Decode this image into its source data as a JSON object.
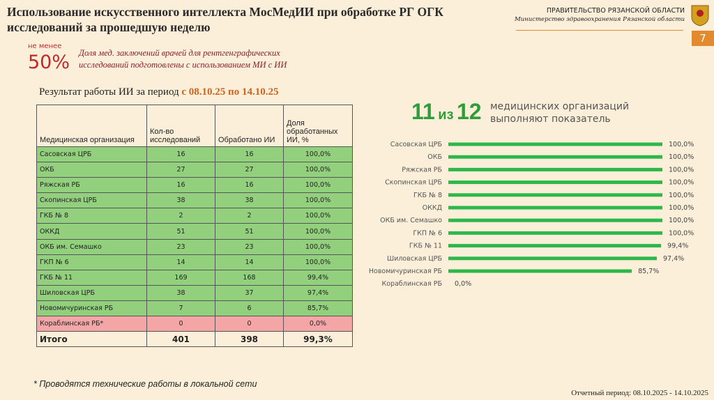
{
  "header": {
    "title": "Использование искусственного интеллекта МосМедИИ при обработке РГ ОГК исследований за прошедшую неделю",
    "org": "ПРАВИТЕЛЬСТВО РЯЗАНСКОЙ ОБЛАСТИ",
    "ministry": "Министерство здравоохранения Рязанской области",
    "page": "7"
  },
  "stat": {
    "prefix": "не менее",
    "value": "50%",
    "text": "Доля мед. заключений врачей для рентгенграфических исследований подготовлены с использованием МИ с ИИ"
  },
  "table": {
    "title": "Результат работы ИИ за период ",
    "period": "с 08.10.25 по 14.10.25",
    "header": [
      "Медицинская организация",
      "Кол-во исследований",
      "Обработано ИИ",
      "Доля обработанных ИИ, %"
    ],
    "rows": [
      [
        "Сасовская ЦРБ",
        "16",
        "16",
        "100,0%"
      ],
      [
        "ОКБ",
        "27",
        "27",
        "100,0%"
      ],
      [
        "Ряжская РБ",
        "16",
        "16",
        "100,0%"
      ],
      [
        "Скопинская ЦРБ",
        "38",
        "38",
        "100,0%"
      ],
      [
        "ГКБ № 8",
        "2",
        "2",
        "100,0%"
      ],
      [
        "ОККД",
        "51",
        "51",
        "100,0%"
      ],
      [
        "ОКБ им. Семашко",
        "23",
        "23",
        "100,0%"
      ],
      [
        "ГКП № 6",
        "14",
        "14",
        "100,0%"
      ],
      [
        "ГКБ № 11",
        "169",
        "168",
        "99,4%"
      ],
      [
        "Шиловская ЦРБ",
        "38",
        "37",
        "97,4%"
      ],
      [
        "Новомичуринская РБ",
        "7",
        "6",
        "85,7%"
      ],
      [
        "Кораблинская РБ*",
        "0",
        "0",
        "0,0%"
      ]
    ],
    "total": [
      "Итого",
      "401",
      "398",
      "99,3%"
    ]
  },
  "summary": {
    "count": "11",
    "sep": "из",
    "of": "12",
    "line1": "медицинских организаций",
    "line2": "выполняют показатель"
  },
  "chart_data": {
    "type": "bar",
    "orientation": "horizontal",
    "color": "#2db84b",
    "xlim": [
      0,
      100
    ],
    "categories": [
      "Сасовская ЦРБ",
      "ОКБ",
      "Ряжская РБ",
      "Скопинская ЦРБ",
      "ГКБ № 8",
      "ОККД",
      "ОКБ им. Семашко",
      "ГКП № 6",
      "ГКБ № 11",
      "Шиловская ЦРБ",
      "Новомичуринская РБ",
      "Кораблинская РБ"
    ],
    "values": [
      100,
      100,
      100,
      100,
      100,
      100,
      100,
      100,
      99.4,
      97.4,
      85.7,
      0
    ],
    "value_labels": [
      "100,0%",
      "100,0%",
      "100,0%",
      "100,0%",
      "100,0%",
      "100,0%",
      "100,0%",
      "100,0%",
      "99,4%",
      "97,4%",
      "85,7%",
      "0,0%"
    ]
  },
  "footnote": "* Проводятся технические работы в локальной сети",
  "report": "Отчетный период: 08.10.2025 - 14.10.2025"
}
